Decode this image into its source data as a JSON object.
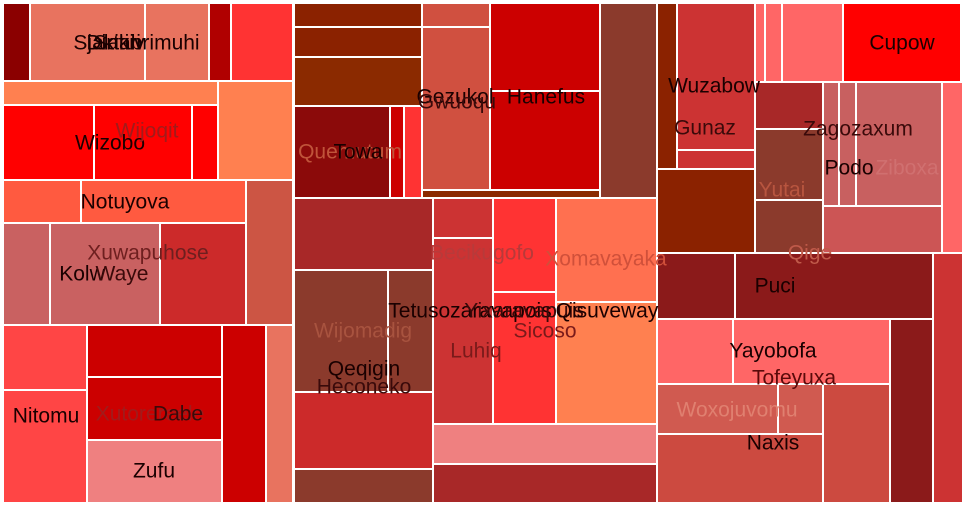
{
  "chart_data": {
    "type": "treemap",
    "title": "",
    "nodes": [
      {
        "label": "Dirtabrimuhi",
        "color": "#e8735f",
        "label_color": "#1a0000"
      },
      {
        "label": "Sjakikiv",
        "color": "#e8735f",
        "label_color": "#1a0000"
      },
      {
        "label": "Satiri",
        "color": "#e8735f",
        "label_color": "#1a0000"
      },
      {
        "label": "Wizobo",
        "color": "#ff0000",
        "label_color": "#1a0000"
      },
      {
        "label": "Wijoqit",
        "color": "#ff0000",
        "label_color": "#a11b1b"
      },
      {
        "label": "Notuyova",
        "color": "#ff5a40",
        "label_color": "#1a0000"
      },
      {
        "label": "Xuwapuhose",
        "color": "#c96161",
        "label_color": "#6e1f1f"
      },
      {
        "label": "Kolw",
        "color": "#c96161",
        "label_color": "#1a0000"
      },
      {
        "label": "Waye",
        "color": "#c96161",
        "label_color": "#3a0a0a"
      },
      {
        "label": "Nitomu",
        "color": "#ff4545",
        "label_color": "#1a0000"
      },
      {
        "label": "Xutorereele",
        "color": "#cc0000",
        "label_color": "#a11b1b"
      },
      {
        "label": "Dabe",
        "color": "#cc0000",
        "label_color": "#3a0a0a"
      },
      {
        "label": "Zufu",
        "color": "#ef8080",
        "label_color": "#1a0000"
      },
      {
        "label": "Quemutum",
        "color": "#ff8050",
        "label_color": "#c0543a"
      },
      {
        "label": "Towa",
        "color": "#8b0a0a",
        "label_color": "#1a0000"
      },
      {
        "label": "Gezukol",
        "color": "#d05040",
        "label_color": "#1a0000"
      },
      {
        "label": "Gwuoqu",
        "color": "#d05040",
        "label_color": "#3a0a0a"
      },
      {
        "label": "Hanefus",
        "color": "#cc0000",
        "label_color": "#1a0000"
      },
      {
        "label": "Becikugofo",
        "color": "#cc3333",
        "label_color": "#b83a3a"
      },
      {
        "label": "Xomavayaka",
        "color": "#ff7050",
        "label_color": "#d0503a"
      },
      {
        "label": "Wijomadig",
        "color": "#8b3a2c",
        "label_color": "#a8533f"
      },
      {
        "label": "Qeqigin",
        "color": "#8b3a2c",
        "label_color": "#1a0000"
      },
      {
        "label": "Heconeko",
        "color": "#8b3a2c",
        "label_color": "#3a0a0a"
      },
      {
        "label": "Tetusozaravapois",
        "color": "#cc3333",
        "label_color": "#1a0000"
      },
      {
        "label": "Yixaravapuis",
        "color": "#cc3333",
        "label_color": "#3a0a0a"
      },
      {
        "label": "Qisuveway",
        "color": "#ff8050",
        "label_color": "#1a0000"
      },
      {
        "label": "Luhiq",
        "color": "#cc3333",
        "label_color": "#7a1a1a"
      },
      {
        "label": "Sicoso",
        "color": "#ff3333",
        "label_color": "#7a1a1a"
      },
      {
        "label": "Wuzabow",
        "color": "#cc3333",
        "label_color": "#1a0000"
      },
      {
        "label": "Gunaz",
        "color": "#cc3333",
        "label_color": "#3a0a0a"
      },
      {
        "label": "Cupow",
        "color": "#ff0000",
        "label_color": "#1a0000"
      },
      {
        "label": "Zagozaxum",
        "color": "#c86060",
        "label_color": "#3a0a0a"
      },
      {
        "label": "Podo",
        "color": "#c86060",
        "label_color": "#1a0000"
      },
      {
        "label": "Yutai",
        "color": "#8b3a2c",
        "label_color": "#b8553f"
      },
      {
        "label": "Ziboxa",
        "color": "#c86060",
        "label_color": "#d07070"
      },
      {
        "label": "Qige",
        "color": "#8b1a1a",
        "label_color": "#c05a4a"
      },
      {
        "label": "Puci",
        "color": "#8b1a1a",
        "label_color": "#1a0000"
      },
      {
        "label": "Yayobofa",
        "color": "#ff6666",
        "label_color": "#1a0000"
      },
      {
        "label": "Tofeyuxa",
        "color": "#ff6666",
        "label_color": "#5a0a0a"
      },
      {
        "label": "Woxojuvomu",
        "color": "#d05a50",
        "label_color": "#e08070"
      },
      {
        "label": "Naxis",
        "color": "#d05040",
        "label_color": "#1a0000"
      }
    ]
  }
}
